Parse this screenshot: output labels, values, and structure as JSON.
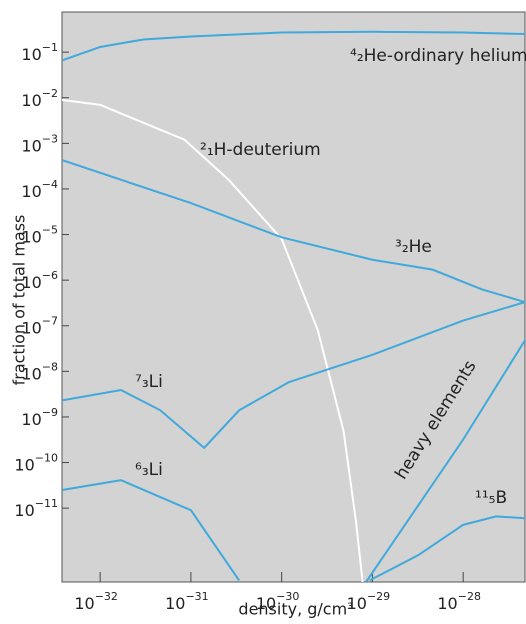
{
  "chart_data": {
    "type": "line",
    "xlabel": "density, g/cm³",
    "ylabel": "fraction of total mass",
    "xlog": true,
    "ylog": true,
    "xlim": [
      3.8e-33,
      4.8e-28
    ],
    "ylim": [
      2.4e-13,
      0.76
    ],
    "xticks": [
      {
        "value": 1e-32,
        "label": "10−32"
      },
      {
        "value": 1e-31,
        "label": "10−31"
      },
      {
        "value": 1e-30,
        "label": "10−30"
      },
      {
        "value": 1e-29,
        "label": "10−29"
      },
      {
        "value": 1e-28,
        "label": "10−28"
      }
    ],
    "yticks": [
      {
        "value": 0.1,
        "label": "10−1"
      },
      {
        "value": 0.01,
        "label": "10−2"
      },
      {
        "value": 0.001,
        "label": "10−3"
      },
      {
        "value": 0.0001,
        "label": "10−4"
      },
      {
        "value": 1e-05,
        "label": "10−5"
      },
      {
        "value": 1e-06,
        "label": "10−6"
      },
      {
        "value": 1e-07,
        "label": "10−7"
      },
      {
        "value": 1e-08,
        "label": "10−8"
      },
      {
        "value": 1e-09,
        "label": "10−9"
      },
      {
        "value": 1e-10,
        "label": "10−10"
      },
      {
        "value": 1e-11,
        "label": "10−11"
      }
    ],
    "series": [
      {
        "name": "⁴₂He-ordinary helium",
        "color": "#3fa9dc",
        "x": [
          3.8e-33,
          1e-32,
          3e-32,
          1e-31,
          1e-30,
          1e-29,
          1e-28,
          4.8e-28
        ],
        "values": [
          0.066,
          0.13,
          0.19,
          0.22,
          0.27,
          0.28,
          0.27,
          0.25
        ]
      },
      {
        "name": "²₁H-deuterium",
        "color": "#ffffff",
        "x": [
          3.8e-33,
          1e-32,
          8.5e-32,
          2.6e-31,
          1e-30,
          2.5e-30,
          4.8e-30,
          6.6e-30,
          7.8e-30
        ],
        "values": [
          0.009,
          0.007,
          0.0012,
          0.00016,
          8e-06,
          8e-08,
          5e-10,
          5e-12,
          2.4e-13
        ]
      },
      {
        "name": "³₂He",
        "color": "#3fa9dc",
        "x": [
          3.8e-33,
          1e-31,
          1e-30,
          1e-29,
          4.6e-29,
          1.6e-28,
          4.8e-28
        ],
        "values": [
          0.00043,
          4.9e-05,
          8.7e-06,
          2.8e-06,
          1.7e-06,
          6.3e-07,
          3.3e-07
        ]
      },
      {
        "name": "⁷₃Li",
        "color": "#3fa9dc",
        "x": [
          3.8e-33,
          1.7e-32,
          4.6e-32,
          1.4e-31,
          3.4e-31,
          1.2e-30,
          1e-29,
          1e-28,
          4.8e-28
        ],
        "values": [
          2.3e-09,
          3.9e-09,
          1.4e-09,
          2.1e-10,
          1.4e-09,
          5.8e-09,
          2.3e-08,
          1.3e-07,
          3.3e-07
        ]
      },
      {
        "name": "⁶₃Li",
        "color": "#3fa9dc",
        "x": [
          3.8e-33,
          1.7e-32,
          1e-31,
          3.4e-31
        ],
        "values": [
          2.5e-11,
          4.1e-11,
          9e-12,
          2.6e-13
        ]
      },
      {
        "name": "heavy elements",
        "color": "#3fa9dc",
        "x": [
          8.5e-30,
          1e-28,
          4.8e-28
        ],
        "values": [
          2.4e-13,
          3.2e-10,
          4.8e-08
        ]
      },
      {
        "name": "¹¹₅B",
        "color": "#3fa9dc",
        "x": [
          9.3e-30,
          3.2e-29,
          1e-28,
          2.3e-28,
          4.8e-28
        ],
        "values": [
          2.6e-13,
          9.3e-13,
          4.3e-12,
          6.6e-12,
          6e-12
        ]
      }
    ]
  }
}
